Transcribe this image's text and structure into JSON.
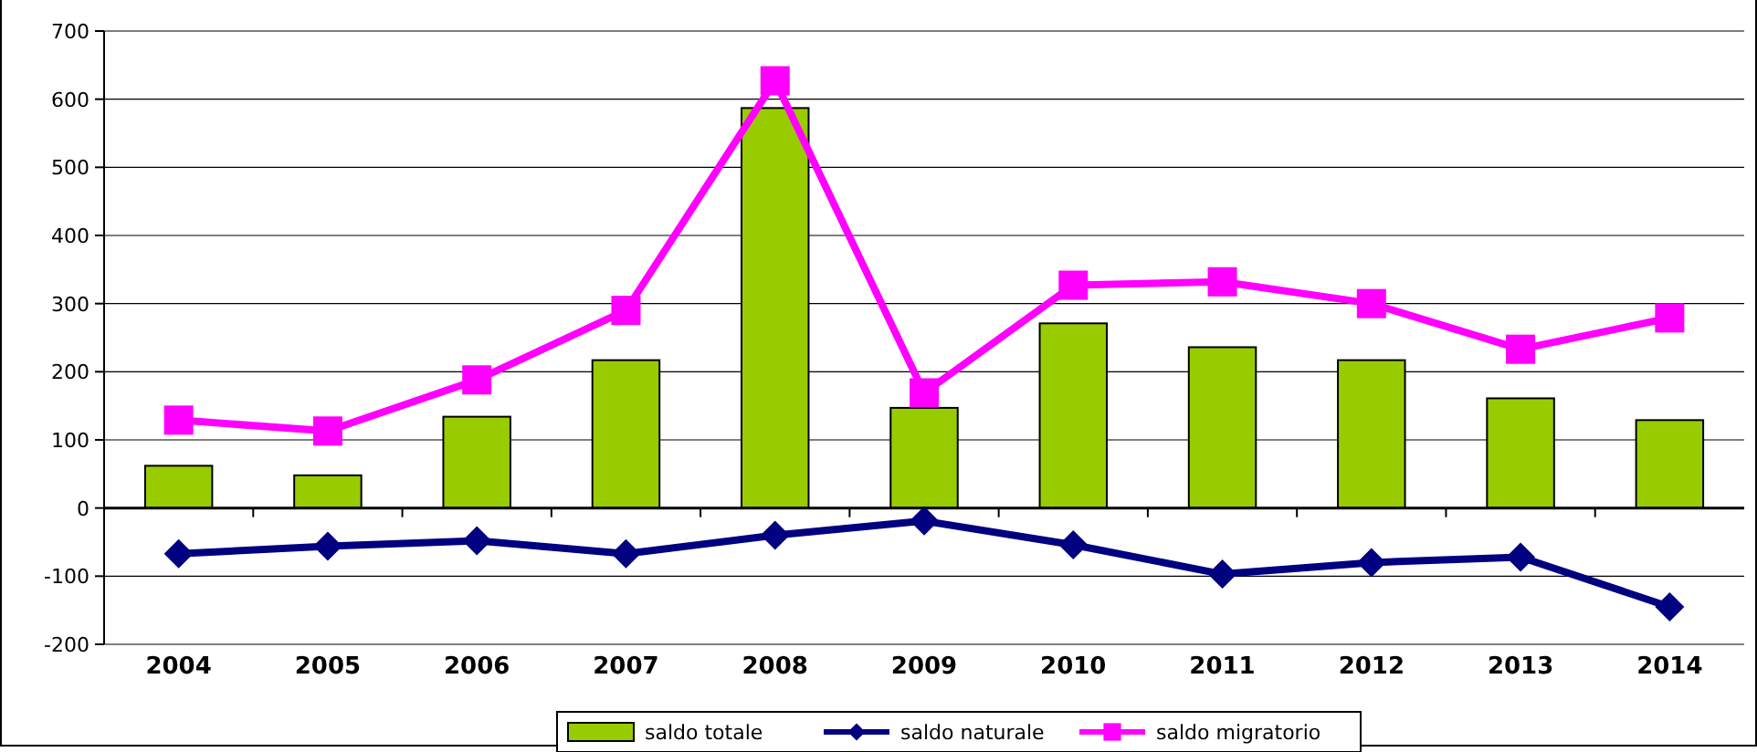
{
  "chart_data": {
    "type": "bar",
    "categories": [
      "2004",
      "2005",
      "2006",
      "2007",
      "2008",
      "2009",
      "2010",
      "2011",
      "2012",
      "2013",
      "2014"
    ],
    "series": [
      {
        "name": "saldo totale",
        "color": "#99cc00",
        "values": [
          62,
          48,
          134,
          217,
          587,
          147,
          271,
          236,
          217,
          161,
          129
        ]
      },
      {
        "name": "saldo naturale",
        "type": "line",
        "color": "#000080",
        "marker": "diamond",
        "values": [
          -67,
          -56,
          -48,
          -67,
          -40,
          -19,
          -54,
          -97,
          -80,
          -72,
          -145
        ]
      },
      {
        "name": "saldo migratorio",
        "type": "line",
        "color": "#ff00ff",
        "marker": "square",
        "values": [
          129,
          113,
          188,
          290,
          627,
          169,
          327,
          332,
          300,
          233,
          279
        ]
      }
    ],
    "ylim": [
      -200,
      700
    ],
    "yticks": [
      -200,
      -100,
      0,
      100,
      200,
      300,
      400,
      500,
      600,
      700
    ],
    "grid": "y",
    "legend": "bottom"
  }
}
